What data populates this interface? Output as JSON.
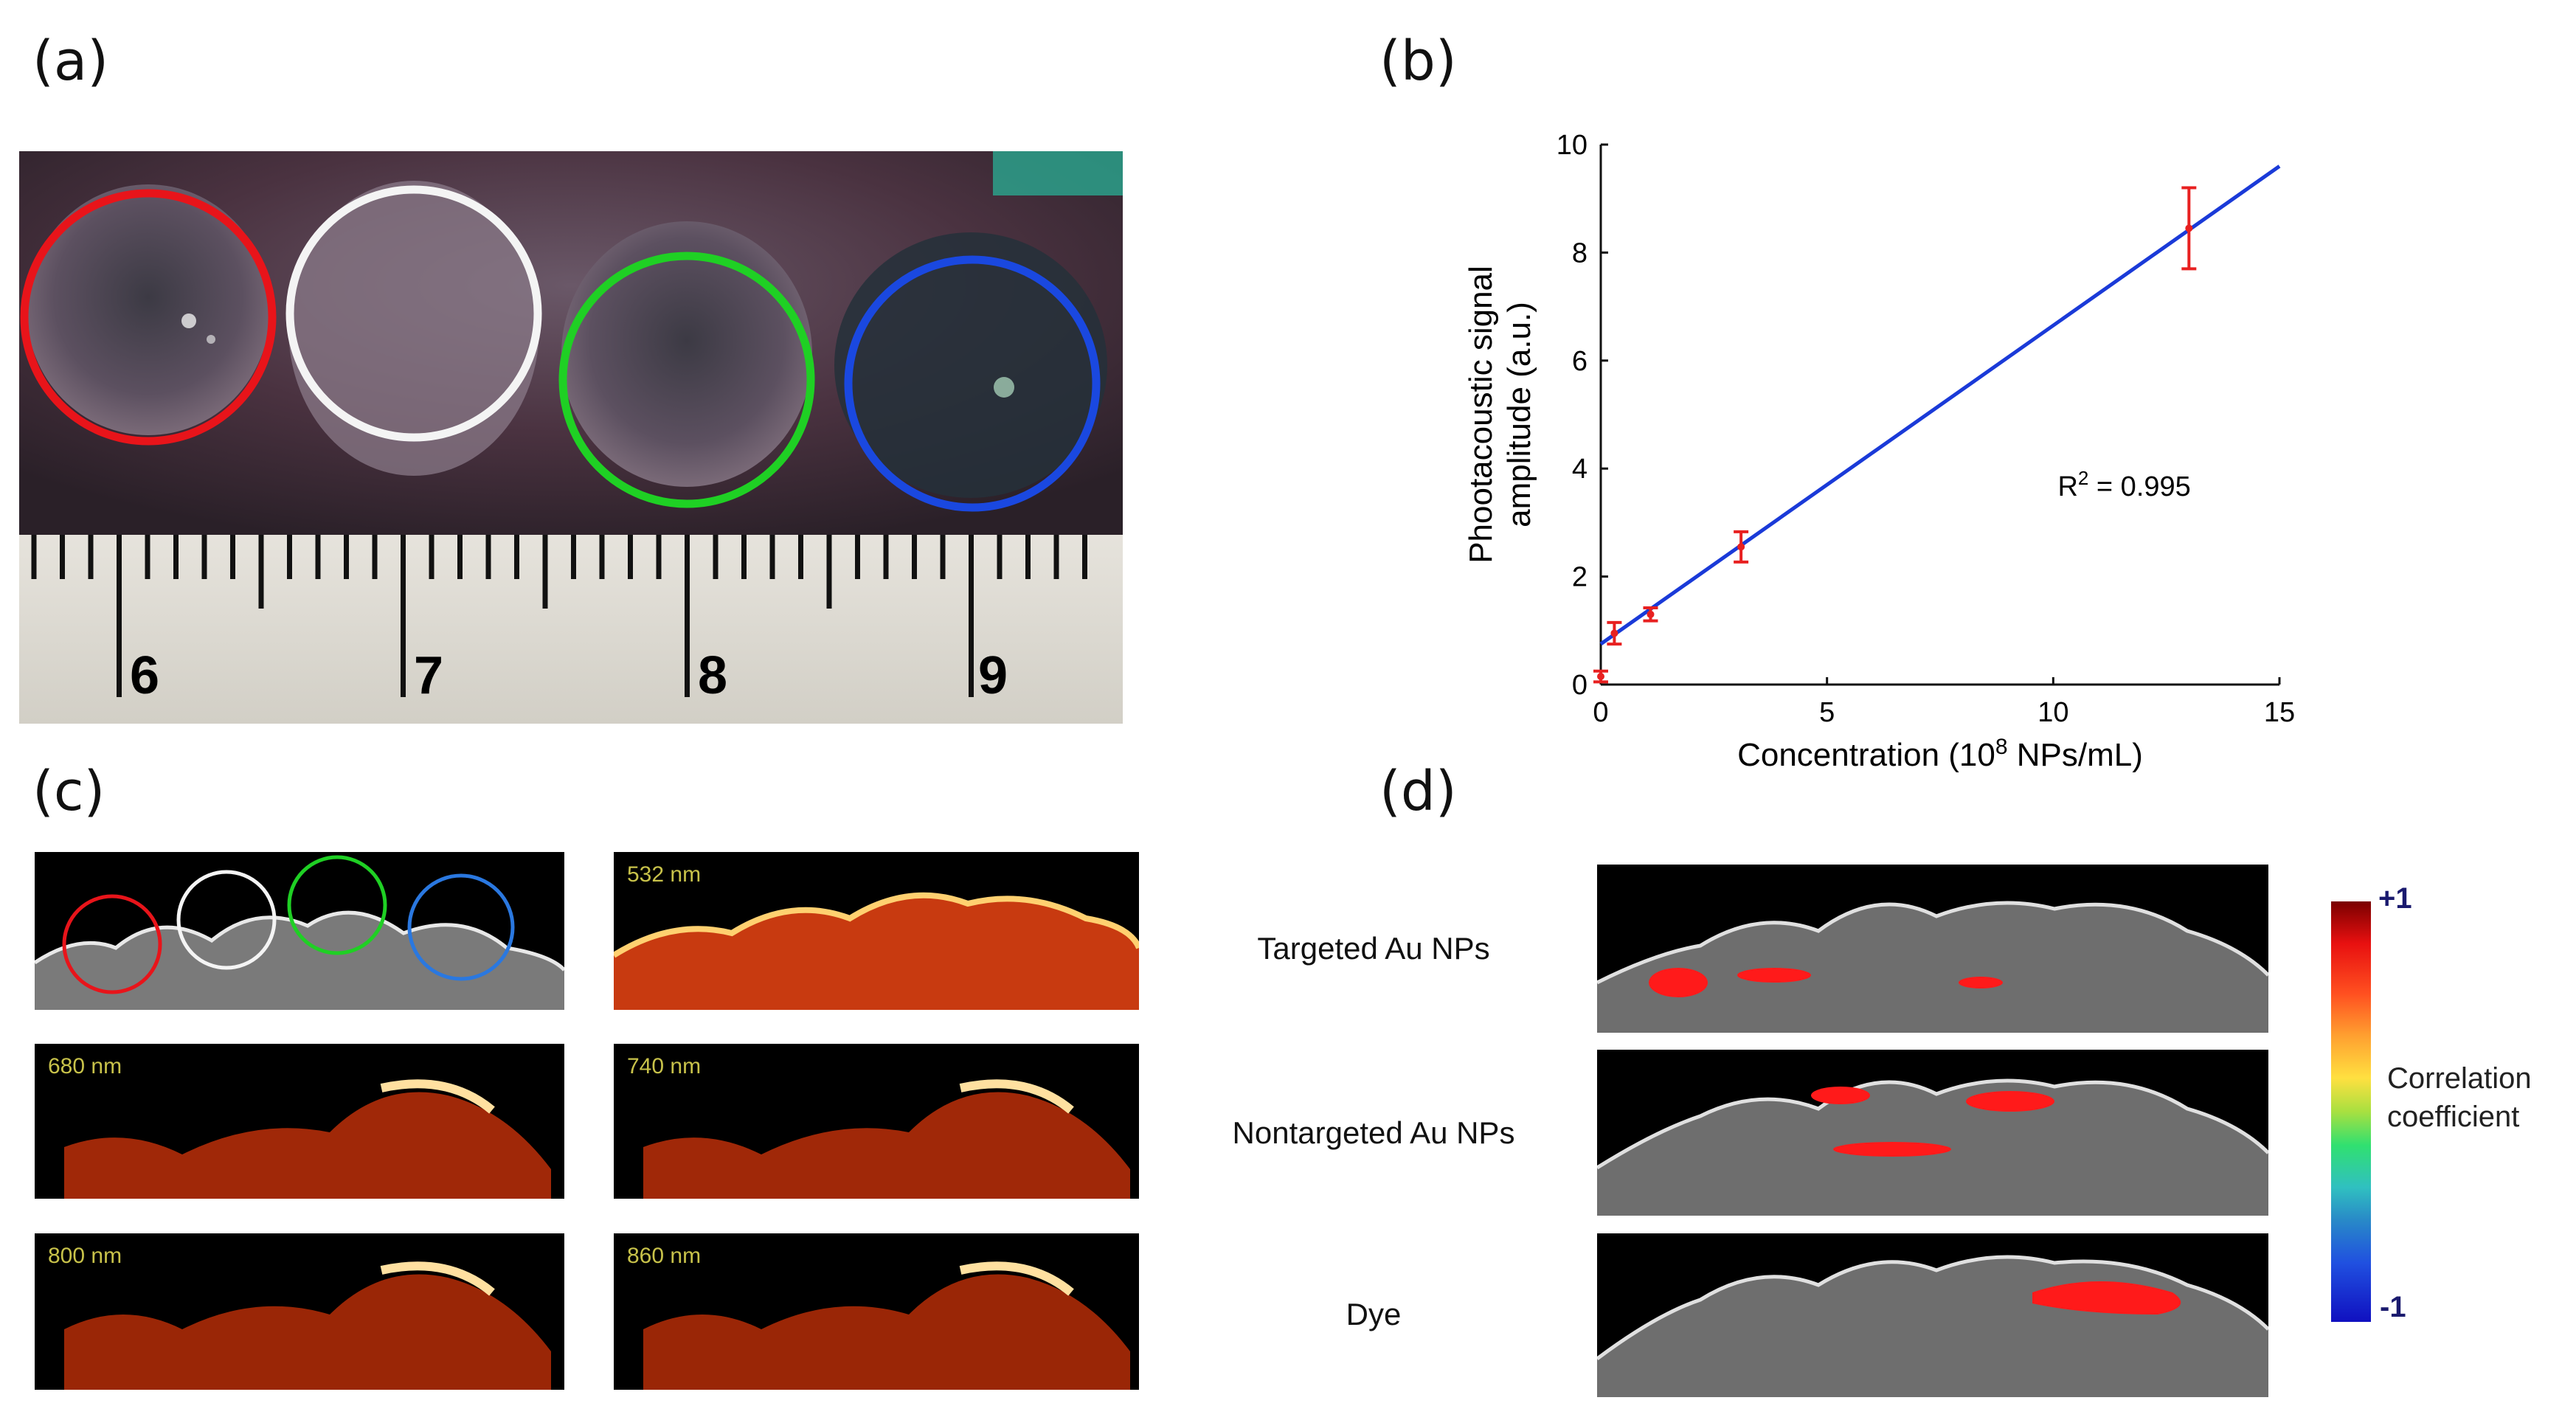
{
  "panels": {
    "a": "(a)",
    "b": "(b)",
    "c": "(c)",
    "d": "(d)"
  },
  "photo": {
    "ruler_numbers": [
      "6",
      "7",
      "8",
      "9"
    ],
    "circle_colors": [
      "#e8141a",
      "#f4f4f4",
      "#1fd024",
      "#1a48e0"
    ]
  },
  "chart_data": {
    "type": "scatter",
    "xlabel_main": "Concentration (10",
    "xlabel_sup": "8",
    "xlabel_tail": " NPs/mL)",
    "ylabel_line1": "Phootacoustic signal",
    "ylabel_line2": "amplitude (a.u.)",
    "xlim": [
      0,
      15
    ],
    "ylim": [
      0,
      10
    ],
    "x_ticks": [
      0,
      5,
      10,
      15
    ],
    "y_ticks": [
      0,
      2,
      4,
      6,
      8,
      10
    ],
    "points": [
      {
        "x": 0,
        "y": 0.15,
        "err": 0.1
      },
      {
        "x": 0.3,
        "y": 0.95,
        "err": 0.2
      },
      {
        "x": 1.1,
        "y": 1.3,
        "err": 0.12
      },
      {
        "x": 3.1,
        "y": 2.55,
        "err": 0.28
      },
      {
        "x": 13.0,
        "y": 8.45,
        "err": 0.75
      }
    ],
    "fit": {
      "slope": 0.59,
      "intercept": 0.75
    },
    "annotation_main": "R",
    "annotation_sup": "2",
    "annotation_tail": " = 0.995",
    "point_color": "#e82020",
    "line_color": "#1a3ad8"
  },
  "panel_c": {
    "wavelengths": [
      "532 nm",
      "680 nm",
      "740 nm",
      "800 nm",
      "860 nm"
    ]
  },
  "panel_d": {
    "rows": [
      "Targeted Au NPs",
      "Nontargeted Au NPs",
      "Dye"
    ],
    "colorbar": {
      "top": "+1",
      "bottom": "-1",
      "title_line1": "Correlation",
      "title_line2": "coefficient"
    }
  }
}
